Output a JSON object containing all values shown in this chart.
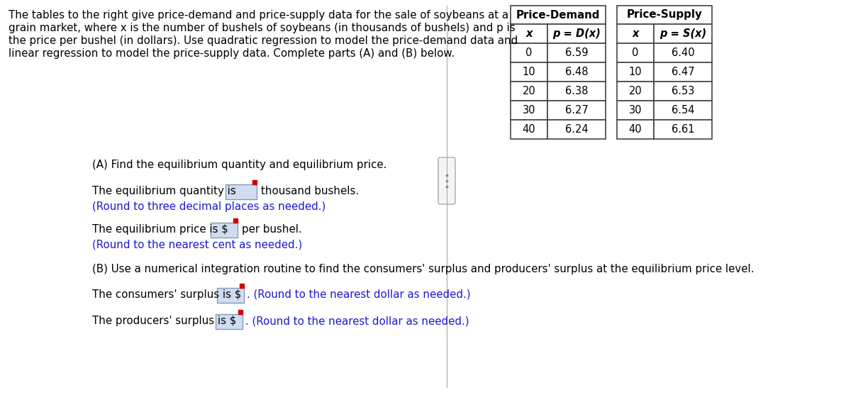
{
  "bg_color": "#ffffff",
  "text_color": "#000000",
  "blue_color": "#1a1acd",
  "box_fill": "#d0ddf0",
  "box_edge": "#8899bb",
  "red_corner": "#cc0000",
  "intro_lines": [
    "The tables to the right give price-demand and price-supply data for the sale of soybeans at a",
    "grain market, where x is the number of bushels of soybeans (in thousands of bushels) and p is",
    "the price per bushel (in dollars). Use quadratic regression to model the price-demand data and",
    "linear regression to model the price-supply data. Complete parts (A) and (B) below."
  ],
  "table_demand_header": "Price-Demand",
  "table_supply_header": "Price-Supply",
  "table_col1_demand": [
    "x",
    "0",
    "10",
    "20",
    "30",
    "40"
  ],
  "table_col2_demand": [
    "p = D(x)",
    "6.59",
    "6.48",
    "6.38",
    "6.27",
    "6.24"
  ],
  "table_col1_supply": [
    "x",
    "0",
    "10",
    "20",
    "30",
    "40"
  ],
  "table_col2_supply": [
    "p = S(x)",
    "6.40",
    "6.47",
    "6.53",
    "6.54",
    "6.61"
  ],
  "part_a_label": "(A) Find the equilibrium quantity and equilibrium price.",
  "eq_qty_pre": "The equilibrium quantity is",
  "eq_qty_post": "thousand bushels.",
  "eq_qty_round": "(Round to three decimal places as needed.)",
  "eq_price_pre": "The equilibrium price is $",
  "eq_price_post": "per bushel.",
  "eq_price_round": "(Round to the nearest cent as needed.)",
  "part_b_label": "(B) Use a numerical integration routine to find the consumers' surplus and producers' surplus at the equilibrium price level.",
  "cons_pre": "The consumers' surplus is $",
  "cons_post": ". (Round to the nearest dollar as needed.)",
  "prod_pre": "The producers' surplus is $",
  "prod_post": ". (Round to the nearest dollar as needed.)",
  "fs_intro": 10.8,
  "fs_body": 10.8,
  "fs_table": 10.5,
  "fs_table_hdr": 10.8
}
